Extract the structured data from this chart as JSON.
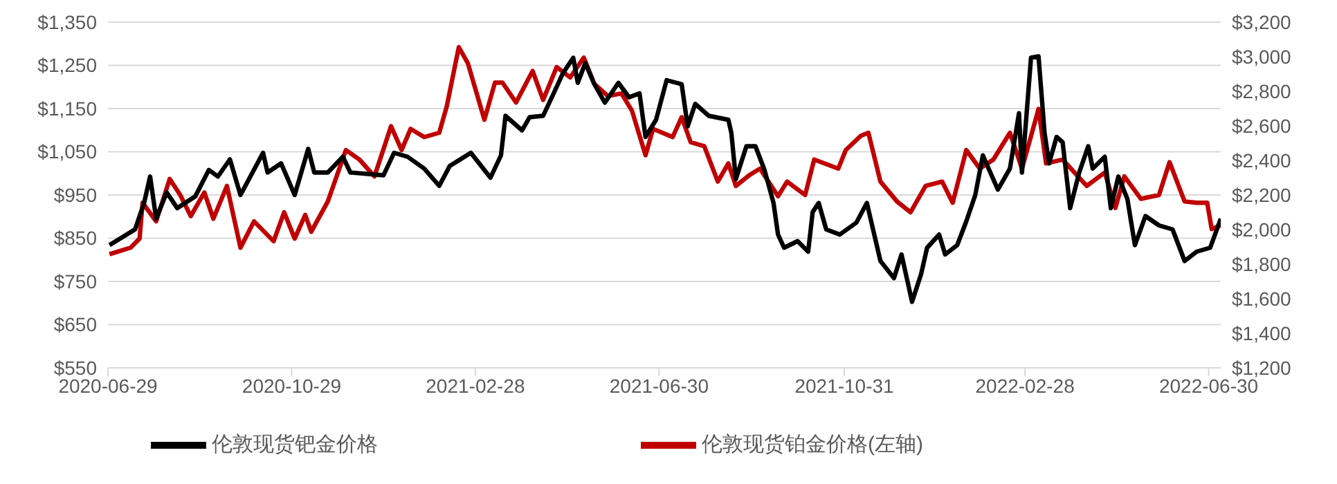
{
  "chart_data": {
    "type": "line",
    "legend": "bottom",
    "grid": "y",
    "xlim": [
      "2020-06-29",
      "2022-07-08"
    ],
    "xticks": [
      "2020-06-29",
      "2020-10-29",
      "2021-02-28",
      "2021-06-30",
      "2021-10-31",
      "2022-02-28",
      "2022-06-30"
    ],
    "ylim": [
      550,
      1350
    ],
    "yticks": [
      {
        "value": 550,
        "label": "$550"
      },
      {
        "value": 650,
        "label": "$650"
      },
      {
        "value": 750,
        "label": "$750"
      },
      {
        "value": 850,
        "label": "$850"
      },
      {
        "value": 950,
        "label": "$950"
      },
      {
        "value": 1050,
        "label": "$1,050"
      },
      {
        "value": 1150,
        "label": "$1,150"
      },
      {
        "value": 1250,
        "label": "$1,250"
      },
      {
        "value": 1350,
        "label": "$1,350"
      }
    ],
    "y2lim": [
      1200,
      3200
    ],
    "y2ticks": [
      {
        "value": 1200,
        "label": "$1,200"
      },
      {
        "value": 1400,
        "label": "$1,400"
      },
      {
        "value": 1600,
        "label": "$1,600"
      },
      {
        "value": 1800,
        "label": "$1,800"
      },
      {
        "value": 2000,
        "label": "$2,000"
      },
      {
        "value": 2200,
        "label": "$2,200"
      },
      {
        "value": 2400,
        "label": "$2,400"
      },
      {
        "value": 2600,
        "label": "$2,600"
      },
      {
        "value": 2800,
        "label": "$2,800"
      },
      {
        "value": 3000,
        "label": "$3,000"
      },
      {
        "value": 3200,
        "label": "$3,200"
      }
    ],
    "series": [
      {
        "name": "伦敦现货铂金价格(左轴)",
        "color": "#c00000",
        "x": [
          "2020-06-30",
          "2020-07-14",
          "2020-07-20",
          "2020-07-22",
          "2020-07-31",
          "2020-08-09",
          "2020-08-16",
          "2020-08-23",
          "2020-09-01",
          "2020-09-07",
          "2020-09-16",
          "2020-09-25",
          "2020-10-04",
          "2020-10-17",
          "2020-10-24",
          "2020-10-31",
          "2020-11-07",
          "2020-11-11",
          "2020-11-22",
          "2020-12-04",
          "2020-12-13",
          "2020-12-23",
          "2021-01-03",
          "2021-01-10",
          "2021-01-16",
          "2021-01-25",
          "2021-02-04",
          "2021-02-09",
          "2021-02-17",
          "2021-02-23",
          "2021-03-06",
          "2021-03-13",
          "2021-03-18",
          "2021-03-27",
          "2021-04-07",
          "2021-04-14",
          "2021-04-23",
          "2021-05-02",
          "2021-05-11",
          "2021-05-18",
          "2021-05-27",
          "2021-06-05",
          "2021-06-12",
          "2021-06-21",
          "2021-06-26",
          "2021-07-09",
          "2021-07-15",
          "2021-07-21",
          "2021-07-30",
          "2021-08-08",
          "2021-08-15",
          "2021-08-20",
          "2021-08-29",
          "2021-09-05",
          "2021-09-17",
          "2021-09-23",
          "2021-10-05",
          "2021-10-11",
          "2021-10-27",
          "2021-11-01",
          "2021-11-11",
          "2021-11-16",
          "2021-11-24",
          "2021-12-05",
          "2021-12-14",
          "2021-12-24",
          "2022-01-04",
          "2022-01-11",
          "2022-01-20",
          "2022-01-29",
          "2022-02-07",
          "2022-02-18",
          "2022-02-26",
          "2022-03-09",
          "2022-03-14",
          "2022-03-25",
          "2022-04-10",
          "2022-04-22",
          "2022-04-29",
          "2022-05-05",
          "2022-05-16",
          "2022-05-28",
          "2022-06-04",
          "2022-06-14",
          "2022-06-22",
          "2022-06-29",
          "2022-07-02",
          "2022-07-08"
        ],
        "values": [
          813,
          828,
          849,
          932,
          889,
          987,
          950,
          901,
          956,
          895,
          971,
          828,
          889,
          843,
          910,
          849,
          904,
          865,
          935,
          1054,
          1032,
          993,
          1109,
          1054,
          1103,
          1084,
          1094,
          1155,
          1292,
          1255,
          1124,
          1210,
          1210,
          1164,
          1237,
          1170,
          1246,
          1222,
          1268,
          1207,
          1179,
          1185,
          1145,
          1042,
          1103,
          1084,
          1130,
          1072,
          1063,
          981,
          1023,
          971,
          996,
          1011,
          947,
          981,
          950,
          1032,
          1011,
          1054,
          1087,
          1094,
          981,
          935,
          910,
          971,
          981,
          932,
          1054,
          1011,
          1032,
          1094,
          1011,
          1149,
          1023,
          1032,
          971,
          1002,
          920,
          993,
          941,
          950,
          1026,
          935,
          932,
          932,
          871,
          880
        ]
      },
      {
        "name": "伦敦现货钯金价格",
        "color": "#000000",
        "axis": "y2",
        "x": [
          "2020-06-30",
          "2020-07-17",
          "2020-07-23",
          "2020-07-27",
          "2020-07-31",
          "2020-08-07",
          "2020-08-14",
          "2020-08-26",
          "2020-09-04",
          "2020-09-10",
          "2020-09-18",
          "2020-09-25",
          "2020-10-10",
          "2020-10-13",
          "2020-10-22",
          "2020-10-31",
          "2020-11-09",
          "2020-11-13",
          "2020-11-22",
          "2020-12-02",
          "2020-12-07",
          "2020-12-29",
          "2021-01-05",
          "2021-01-14",
          "2021-01-25",
          "2021-02-04",
          "2021-02-11",
          "2021-02-25",
          "2021-03-10",
          "2021-03-17",
          "2021-03-20",
          "2021-03-31",
          "2021-04-05",
          "2021-04-14",
          "2021-04-21",
          "2021-04-27",
          "2021-05-04",
          "2021-05-07",
          "2021-05-12",
          "2021-05-18",
          "2021-05-25",
          "2021-06-03",
          "2021-06-10",
          "2021-06-17",
          "2021-06-21",
          "2021-06-28",
          "2021-07-05",
          "2021-07-15",
          "2021-07-19",
          "2021-07-24",
          "2021-08-02",
          "2021-08-15",
          "2021-08-17",
          "2021-08-20",
          "2021-08-27",
          "2021-09-02",
          "2021-09-08",
          "2021-09-14",
          "2021-09-17",
          "2021-09-21",
          "2021-09-30",
          "2021-10-07",
          "2021-10-10",
          "2021-10-14",
          "2021-10-19",
          "2021-10-28",
          "2021-11-08",
          "2021-11-15",
          "2021-11-24",
          "2021-12-03",
          "2021-12-08",
          "2021-12-15",
          "2021-12-21",
          "2021-12-25",
          "2022-01-02",
          "2022-01-06",
          "2022-01-14",
          "2022-01-20",
          "2022-01-26",
          "2022-01-31",
          "2022-02-05",
          "2022-02-10",
          "2022-02-18",
          "2022-02-24",
          "2022-02-26",
          "2022-03-04",
          "2022-03-09",
          "2022-03-13",
          "2022-03-16",
          "2022-03-21",
          "2022-03-25",
          "2022-03-30",
          "2022-04-05",
          "2022-04-11",
          "2022-04-14",
          "2022-04-22",
          "2022-04-26",
          "2022-05-01",
          "2022-05-07",
          "2022-05-12",
          "2022-05-19",
          "2022-05-28",
          "2022-06-06",
          "2022-06-14",
          "2022-06-22",
          "2022-07-01",
          "2022-07-08"
        ],
        "values": [
          1910,
          2001,
          2154,
          2307,
          2063,
          2215,
          2124,
          2192,
          2345,
          2307,
          2406,
          2200,
          2444,
          2330,
          2383,
          2200,
          2467,
          2330,
          2330,
          2421,
          2330,
          2314,
          2444,
          2421,
          2353,
          2253,
          2368,
          2444,
          2300,
          2429,
          2658,
          2574,
          2650,
          2658,
          2788,
          2902,
          2994,
          2849,
          2963,
          2841,
          2734,
          2849,
          2765,
          2788,
          2536,
          2635,
          2864,
          2841,
          2597,
          2727,
          2658,
          2635,
          2559,
          2292,
          2482,
          2482,
          2345,
          2154,
          1971,
          1895,
          1933,
          1872,
          2101,
          2154,
          2001,
          1971,
          2040,
          2154,
          1818,
          1719,
          1856,
          1582,
          1742,
          1895,
          1971,
          1856,
          1910,
          2047,
          2200,
          2429,
          2330,
          2231,
          2353,
          2673,
          2330,
          2994,
          3002,
          2559,
          2383,
          2536,
          2505,
          2124,
          2330,
          2482,
          2353,
          2421,
          2124,
          2307,
          2177,
          1910,
          2078,
          2024,
          2001,
          1818,
          1872,
          1895,
          2063
        ]
      }
    ]
  }
}
